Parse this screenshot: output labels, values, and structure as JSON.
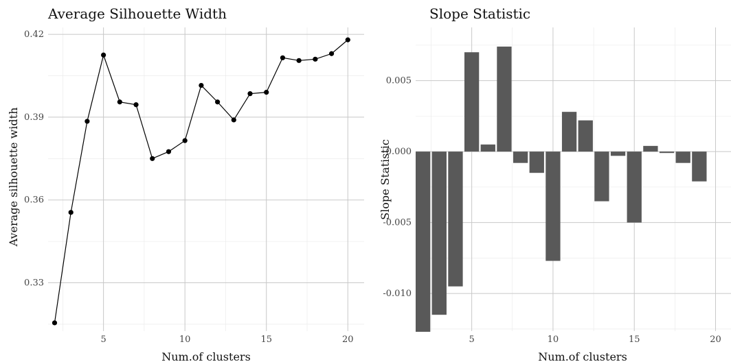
{
  "chart_data": [
    {
      "type": "line",
      "title": "Average Silhouette Width",
      "xlabel": "Num.of clusters",
      "ylabel": "Average silhouette width",
      "xlim": [
        1.6,
        21
      ],
      "ylim": [
        0.3125,
        0.4225
      ],
      "x_ticks": [
        5,
        10,
        15,
        20
      ],
      "x_tick_labels": [
        "5",
        "10",
        "15",
        "20"
      ],
      "y_ticks": [
        0.33,
        0.36,
        0.39,
        0.42
      ],
      "y_tick_labels": [
        "0.33",
        "0.36",
        "0.39",
        "0.42"
      ],
      "grid": true,
      "series": [
        {
          "x": [
            2,
            3,
            4,
            5,
            6,
            7,
            8,
            9,
            10,
            11,
            12,
            13,
            14,
            15,
            16,
            17,
            18,
            19,
            20
          ],
          "y": [
            0.3155,
            0.3555,
            0.3885,
            0.4125,
            0.3955,
            0.3945,
            0.375,
            0.3775,
            0.3815,
            0.4015,
            0.3955,
            0.389,
            0.3985,
            0.399,
            0.4115,
            0.4105,
            0.411,
            0.413,
            0.418
          ]
        }
      ]
    },
    {
      "type": "bar",
      "title": "Slope Statistic",
      "xlabel": "Num.of clusters",
      "ylabel": "Slope Statistic",
      "xlim": [
        1.55,
        20.95
      ],
      "ylim": [
        -0.01265,
        0.00875
      ],
      "x_ticks": [
        5,
        10,
        15,
        20
      ],
      "x_tick_labels": [
        "5",
        "10",
        "15",
        "20"
      ],
      "y_ticks": [
        -0.01,
        -0.005,
        0.0,
        0.005
      ],
      "y_tick_labels": [
        "-0.010",
        "-0.005",
        "0.000",
        "0.005"
      ],
      "grid": true,
      "categories": [
        2,
        3,
        4,
        5,
        6,
        7,
        8,
        9,
        10,
        11,
        12,
        13,
        14,
        15,
        16,
        17,
        18,
        19
      ],
      "values": [
        -0.0127,
        -0.0115,
        -0.0095,
        0.007,
        0.0005,
        0.0074,
        -0.0008,
        -0.0015,
        -0.0077,
        0.0028,
        0.0022,
        -0.0035,
        -0.0003,
        -0.005,
        0.0004,
        -0.0001,
        -0.0008,
        -0.0021
      ],
      "color": "#595959"
    }
  ]
}
